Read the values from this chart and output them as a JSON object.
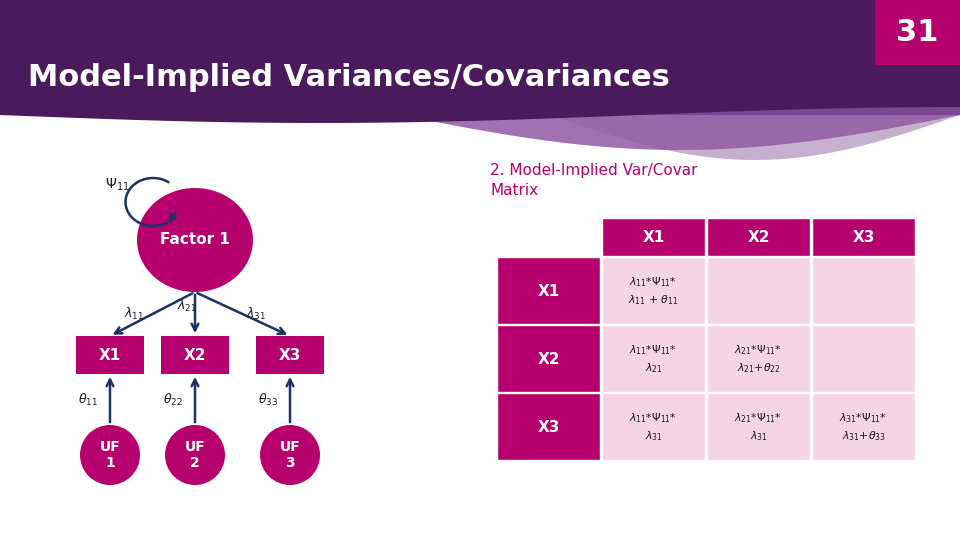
{
  "title": "Model-Implied Variances/Covariances",
  "slide_number": "31",
  "header_bg": "#4a1a5c",
  "header_bg2": "#6b3080",
  "node_color": "#b5006e",
  "arrow_color": "#1a3366",
  "table_header_color": "#b5006e",
  "table_cell_color": "#f5d5e5",
  "table_header_text": "#ffffff",
  "table_cell_text": "#1a1a1a",
  "subtitle_color": "#b5006e",
  "background_color": "#ffffff",
  "slide_number_color": "#ffffff",
  "slide_number_bg": "#b5006e",
  "factor_label": "Factor 1",
  "x_labels": [
    "X1",
    "X2",
    "X3"
  ],
  "uf_labels": [
    "UF\n1",
    "UF\n2",
    "UF\n3"
  ],
  "table_col_headers": [
    "X1",
    "X2",
    "X3"
  ],
  "table_row_headers": [
    "X1",
    "X2",
    "X3"
  ]
}
